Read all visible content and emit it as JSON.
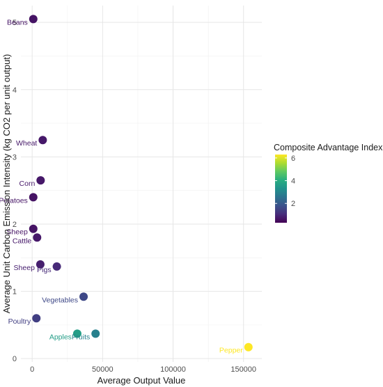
{
  "chart_data": {
    "type": "scatter",
    "title": "",
    "xlabel": "Average Output Value",
    "ylabel": "Average Unit Carbon Emission Intensity (kg CO2 per unit output)",
    "xlim": [
      -8000,
      163000
    ],
    "ylim": [
      -0.05,
      5.25
    ],
    "x_ticks": [
      0,
      50000,
      100000,
      150000
    ],
    "x_tick_labels": [
      "0",
      "50000",
      "100000",
      "150000"
    ],
    "y_ticks": [
      0,
      1,
      2,
      3,
      4,
      5
    ],
    "y_tick_labels": [
      "0",
      "1",
      "2",
      "3",
      "4",
      "5"
    ],
    "grid": true,
    "color_scale": "viridis",
    "legend": {
      "title": "Composite Advantage Index",
      "position": "right",
      "min": 0.3,
      "max": 6.3,
      "ticks": [
        2,
        4,
        6
      ],
      "tick_labels": [
        "2",
        "4",
        "6"
      ]
    },
    "points": [
      {
        "label": "Beans",
        "x": 800,
        "y": 5.05,
        "index": 0.6
      },
      {
        "label": "Wheat",
        "x": 7500,
        "y": 3.25,
        "index": 0.7
      },
      {
        "label": "Corn",
        "x": 6000,
        "y": 2.65,
        "index": 0.7
      },
      {
        "label": "Potatoes",
        "x": 800,
        "y": 2.4,
        "index": 0.6
      },
      {
        "label": "Sheep",
        "x": 800,
        "y": 1.93,
        "index": 0.6
      },
      {
        "label": "Cattle",
        "x": 3500,
        "y": 1.8,
        "index": 0.7
      },
      {
        "label": "Sheep",
        "x": 5800,
        "y": 1.4,
        "index": 0.8
      },
      {
        "label": "Pigs",
        "x": 17500,
        "y": 1.37,
        "index": 1.0
      },
      {
        "label": "Vegetables",
        "x": 36500,
        "y": 0.92,
        "index": 1.6
      },
      {
        "label": "Poultry",
        "x": 3000,
        "y": 0.6,
        "index": 1.4
      },
      {
        "label": "Apples",
        "x": 32000,
        "y": 0.37,
        "index": 3.6
      },
      {
        "label": "Fruits",
        "x": 45000,
        "y": 0.37,
        "index": 2.9
      },
      {
        "label": "Pepper",
        "x": 153500,
        "y": 0.17,
        "index": 6.3
      }
    ]
  }
}
